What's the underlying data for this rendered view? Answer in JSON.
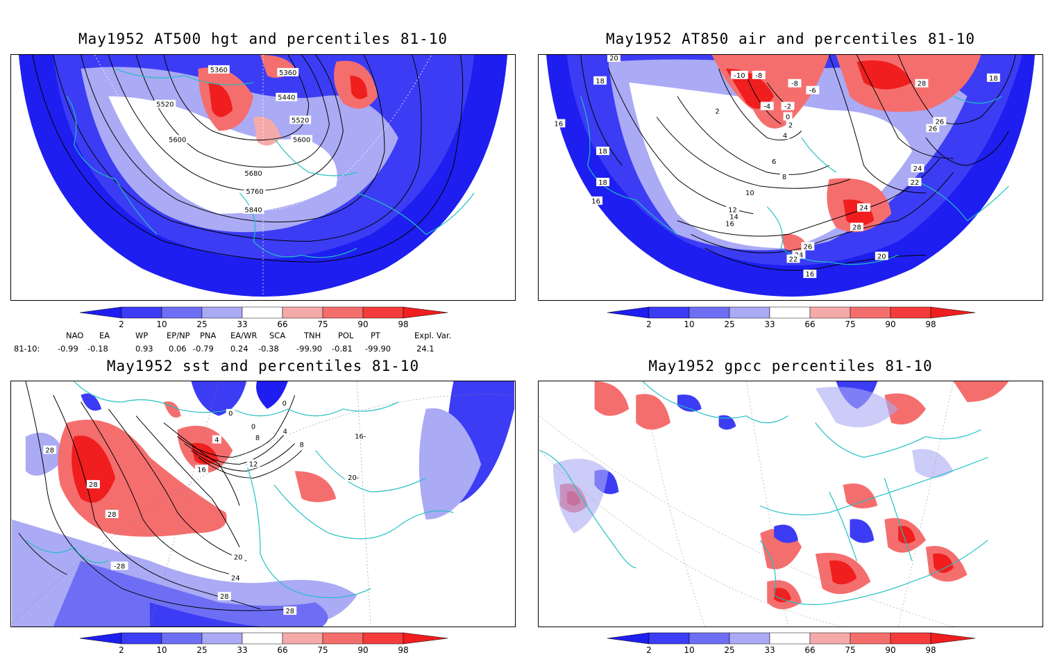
{
  "panels": [
    {
      "title": "May1952 AT500 hgt and percentiles 81-10",
      "contour_labels": [
        "5360",
        "5360",
        "5440",
        "5520",
        "5520",
        "5600",
        "5600",
        "5680",
        "5760",
        "5840"
      ]
    },
    {
      "title": "May1952 AT850 air and percentiles 81-10",
      "contour_labels": [
        "20",
        "18",
        "18",
        "16",
        "18",
        "16",
        "-10",
        "-8",
        "-8",
        "-6",
        "-4",
        "-2",
        "0",
        "2",
        "4",
        "2",
        "6",
        "8",
        "10",
        "12",
        "14",
        "16",
        "28",
        "26",
        "26",
        "24",
        "22",
        "24",
        "28",
        "26",
        "24",
        "22",
        "20",
        "16",
        "18"
      ]
    },
    {
      "title": "May1952 sst and percentiles 81-10",
      "contour_labels": [
        "0",
        "0",
        "4",
        "0",
        "4",
        "8",
        "8",
        "12",
        "16",
        "28",
        "28",
        "28",
        "20",
        "24",
        "28",
        "28",
        "-28",
        "20-",
        "16-"
      ]
    },
    {
      "title": "May1952 gpcc percentiles 81-10",
      "contour_labels": []
    }
  ],
  "colorbar": {
    "ticks": [
      "2",
      "10",
      "25",
      "33",
      "66",
      "75",
      "90",
      "98"
    ],
    "colors": [
      "#1e1ef0",
      "#3c3cf5",
      "#6e6ef5",
      "#aaaaf5",
      "#ffffff",
      "#f5aaaa",
      "#f56e6e",
      "#f53c3c",
      "#f01e1e"
    ]
  },
  "indices": {
    "headers": [
      "NAO",
      "EA",
      "WP",
      "EP/NP",
      "PNA",
      "EA/WR",
      "SCA",
      "TNH",
      "POL",
      "PT",
      "Expl. Var."
    ],
    "row_label": "81-10:",
    "values": [
      "-0.99",
      "-0.18",
      "0.93",
      "0.06",
      "-0.79",
      "0.24",
      "-0.38",
      "-99.90",
      "-0.81",
      "-99.90",
      "24.1"
    ]
  },
  "colors": {
    "land_outline": "#20c0c0",
    "contour": "#000000",
    "blue": "#1e1ef0",
    "red": "#f01e1e"
  }
}
